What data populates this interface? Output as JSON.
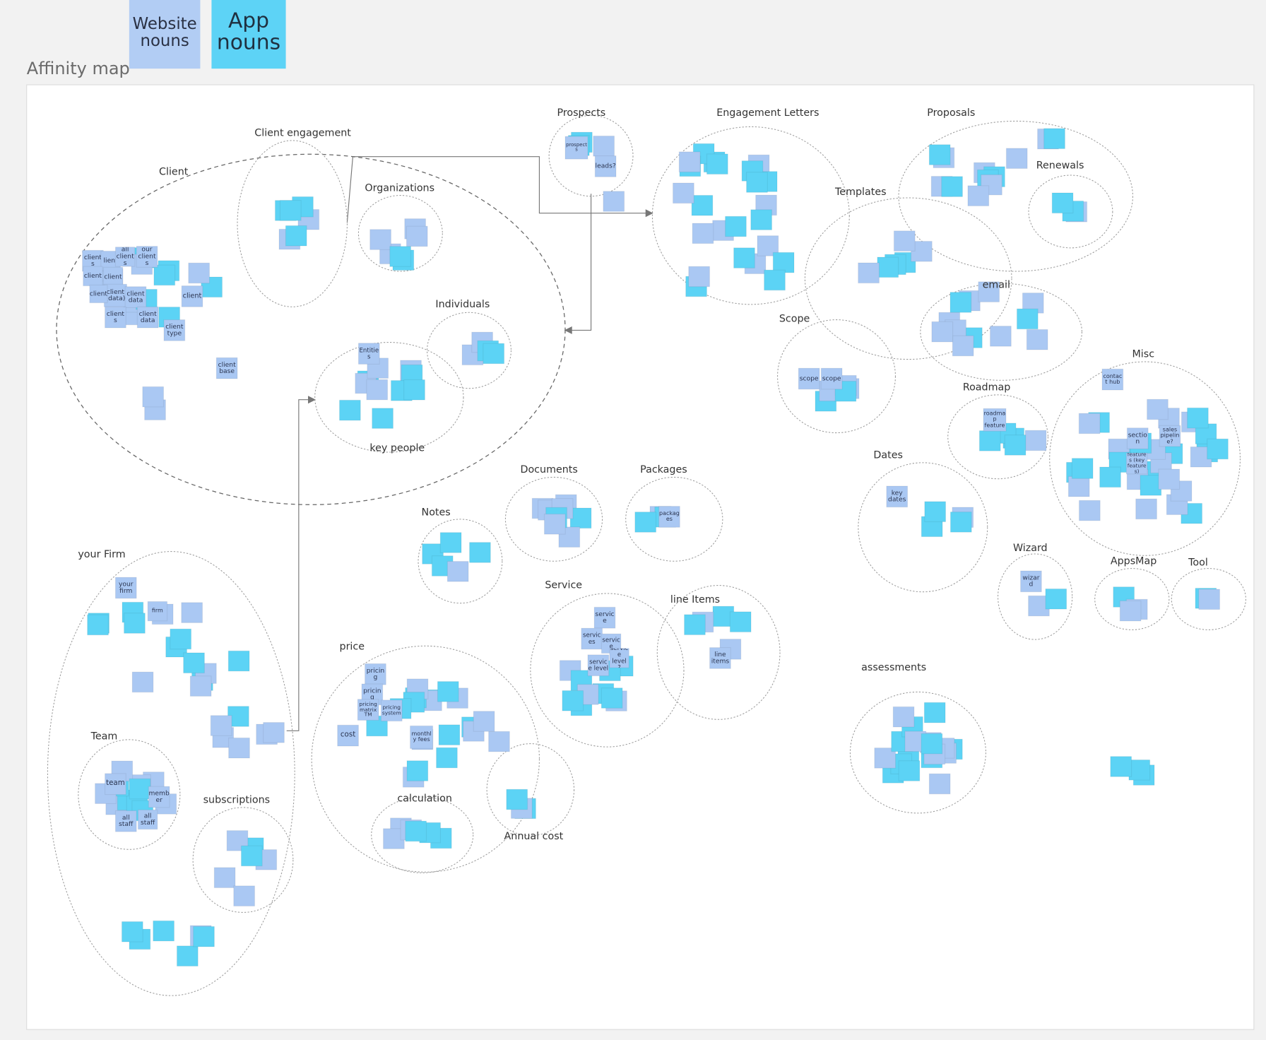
{
  "header": {
    "title": "Affinity map",
    "legend": [
      {
        "label": "Website nouns"
      },
      {
        "label": "App nouns"
      }
    ]
  },
  "clusters": [
    {
      "label": "Client"
    },
    {
      "label": "Client engagement"
    },
    {
      "label": "Organizations"
    },
    {
      "label": "Individuals"
    },
    {
      "label": "key people"
    },
    {
      "label": "Prospects"
    },
    {
      "label": "Engagement Letters"
    },
    {
      "label": "Proposals"
    },
    {
      "label": "Renewals"
    },
    {
      "label": "Templates"
    },
    {
      "label": "email"
    },
    {
      "label": "Scope"
    },
    {
      "label": "Misc"
    },
    {
      "label": "Roadmap"
    },
    {
      "label": "Dates"
    },
    {
      "label": "Wizard"
    },
    {
      "label": "AppsMap"
    },
    {
      "label": "Tool"
    },
    {
      "label": "Documents"
    },
    {
      "label": "Packages"
    },
    {
      "label": "Notes"
    },
    {
      "label": "Service"
    },
    {
      "label": "line Items"
    },
    {
      "label": "price"
    },
    {
      "label": "Annual cost"
    },
    {
      "label": "calculation"
    },
    {
      "label": "your Firm"
    },
    {
      "label": "Team"
    },
    {
      "label": "subscriptions"
    },
    {
      "label": "assessments"
    }
  ],
  "notes": [
    {
      "text": "clients"
    },
    {
      "text": "lient"
    },
    {
      "text": "all clients"
    },
    {
      "text": "our clients"
    },
    {
      "text": "client"
    },
    {
      "text": "client"
    },
    {
      "text": "client (data)"
    },
    {
      "text": "client data"
    },
    {
      "text": "client"
    },
    {
      "text": "client"
    },
    {
      "text": "clients"
    },
    {
      "text": "client data"
    },
    {
      "text": "client type"
    },
    {
      "text": "client base"
    },
    {
      "text": "Entities"
    },
    {
      "text": "prospects"
    },
    {
      "text": "leads?"
    },
    {
      "text": "scope"
    },
    {
      "text": "scope"
    },
    {
      "text": "key dates"
    },
    {
      "text": "contact hub"
    },
    {
      "text": "section"
    },
    {
      "text": "sales pipeline?"
    },
    {
      "text": "features (key features)"
    },
    {
      "text": "roadmap feature"
    },
    {
      "text": "wizard"
    },
    {
      "text": "packages"
    },
    {
      "text": "service"
    },
    {
      "text": "services"
    },
    {
      "text": "service"
    },
    {
      "text": "service level"
    },
    {
      "text": "service level ?"
    },
    {
      "text": "line items"
    },
    {
      "text": "pricing"
    },
    {
      "text": "pricing"
    },
    {
      "text": "pricing matrix TM"
    },
    {
      "text": "pricing system"
    },
    {
      "text": "cost"
    },
    {
      "text": "monthly fees"
    },
    {
      "text": "your firm"
    },
    {
      "text": "firm"
    },
    {
      "text": "team"
    },
    {
      "text": "member"
    },
    {
      "text": "all staff"
    },
    {
      "text": "all staff"
    }
  ]
}
